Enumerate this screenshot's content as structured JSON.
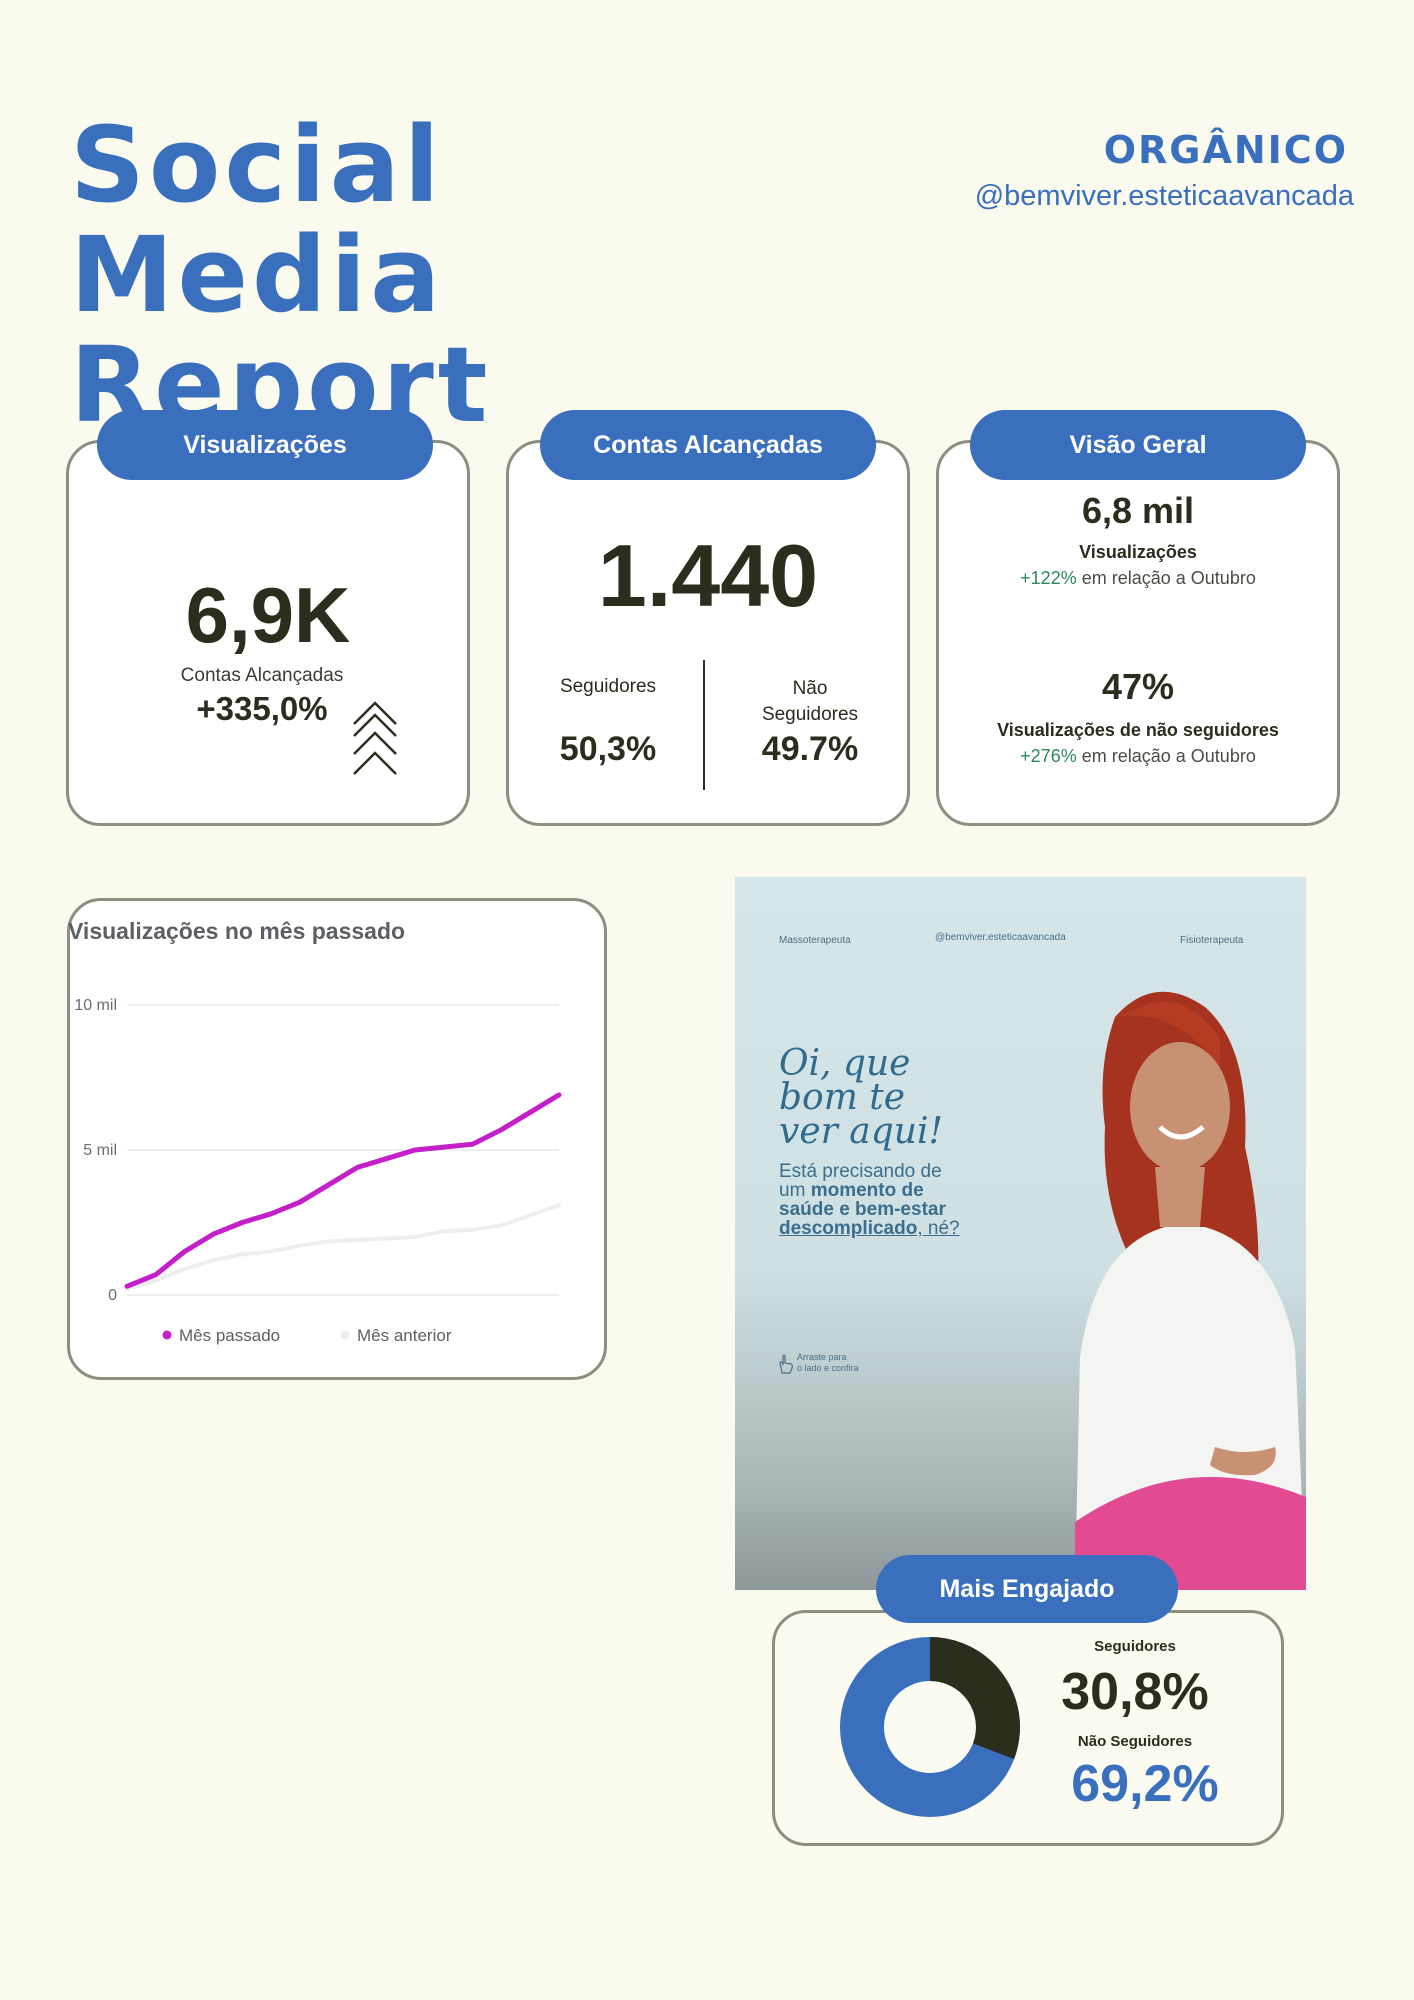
{
  "header": {
    "title": "Social Media Report",
    "category": "ORGÂNICO",
    "handle": "@bemviver.esteticaavancada"
  },
  "views_card": {
    "label": "Visualizações",
    "value": "6,9K",
    "caption": "Contas Alcançadas",
    "change": "+335,0%"
  },
  "reach_card": {
    "label": "Contas Alcançadas",
    "value": "1.440",
    "followers_label": "Seguidores",
    "followers_value": "50,3%",
    "non_followers_label": "Não\nSeguidores",
    "non_followers_value": "49.7%"
  },
  "overview_card": {
    "label": "Visão Geral",
    "stat1_value": "6,8 mil",
    "stat1_label": "Visualizações",
    "stat1_change": "+122%",
    "stat1_suffix": "em relação a Outubro",
    "stat2_value": "47%",
    "stat2_label": "Visualizações de não seguidores",
    "stat2_change": "+276%",
    "stat2_suffix": "em relação a Outubro"
  },
  "colors": {
    "accent": "#3a6fbd",
    "dark": "#2b2e1d",
    "series_current": "#c41fc8",
    "series_previous": "#eeeef2",
    "positive": "#2c8a5a"
  },
  "chart_data": {
    "type": "line",
    "title": "Visualizações no mês passado",
    "xlabel": "",
    "ylabel": "",
    "x": [
      1,
      2,
      3,
      4,
      5,
      6,
      7,
      8,
      9,
      10,
      11,
      12,
      13,
      14,
      15,
      16
    ],
    "ylim": [
      0,
      10000
    ],
    "yticks": [
      "0",
      "5 mil",
      "10 mil"
    ],
    "grid": true,
    "legend": "bottom",
    "series": [
      {
        "name": "Mês passado",
        "values": [
          300,
          700,
          1500,
          2100,
          2500,
          2800,
          3200,
          3800,
          4400,
          4700,
          5000,
          5100,
          5200,
          5700,
          6300,
          6900
        ]
      },
      {
        "name": "Mês anterior",
        "values": [
          200,
          500,
          900,
          1200,
          1400,
          1500,
          1700,
          1850,
          1900,
          1950,
          2000,
          2200,
          2250,
          2400,
          2750,
          3100
        ]
      }
    ]
  },
  "post": {
    "left_tag": "Massoterapeuta",
    "center_handle": "@bemviver.esteticaavancada",
    "right_tag": "Fisioterapeuta",
    "headline": "Oi, que\nbom te\nver aqui!",
    "line1": "Está precisando de",
    "line2_pre": "um ",
    "line2_bold": "momento de",
    "line3": "saúde e bem-estar",
    "line4_bold": "descomplicado",
    "line4_post": ", né?",
    "swipe": "Arraste para\no lado e confira"
  },
  "engaged_card": {
    "label": "Mais Engajado",
    "followers_label": "Seguidores",
    "followers_value": "30,8%",
    "non_followers_label": "Não Seguidores",
    "non_followers_value": "69,2%",
    "followers_share": 30.8,
    "non_followers_share": 69.2
  }
}
